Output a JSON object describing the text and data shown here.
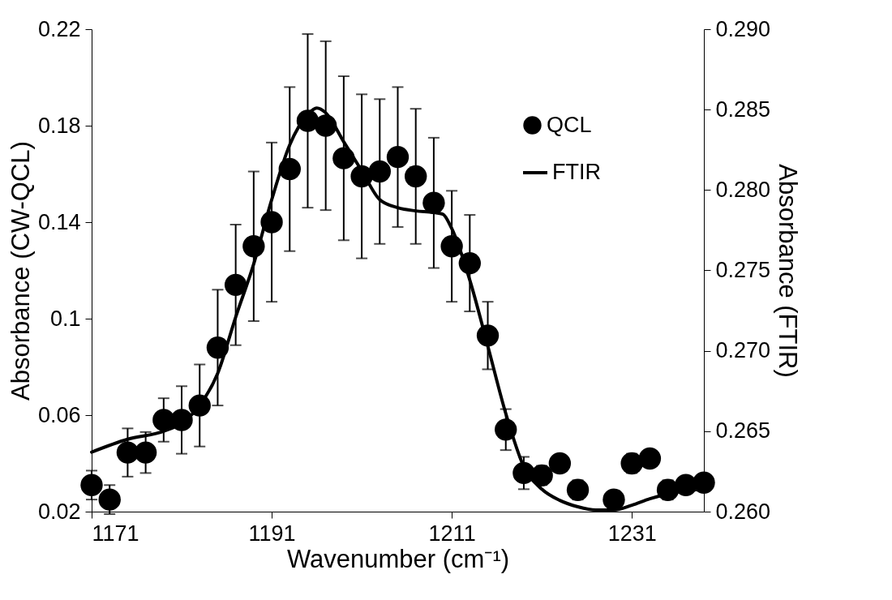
{
  "chart_data": {
    "type": "scatter",
    "xlabel": "Wavenumber (cm⁻¹)",
    "ylabel": "Absorbance (CW-QCL)",
    "y2label": "Absorbance (FTIR)",
    "xlim": [
      1171,
      1239
    ],
    "xticks": [
      1171,
      1191,
      1211,
      1231
    ],
    "ylim": [
      0.02,
      0.22
    ],
    "yticks": [
      0.02,
      0.06,
      {
        "value": 0.1,
        "label": "0.1"
      },
      0.14,
      0.18,
      0.22
    ],
    "y2lim": [
      0.26,
      0.29
    ],
    "y2ticks": [
      {
        "value": 0.26,
        "label": "0.260"
      },
      {
        "value": 0.265,
        "label": "0.265"
      },
      {
        "value": 0.27,
        "label": "0.270"
      },
      {
        "value": 0.275,
        "label": "0.275"
      },
      {
        "value": 0.28,
        "label": "0.280"
      },
      {
        "value": 0.285,
        "label": "0.285"
      },
      {
        "value": 0.29,
        "label": "0.290"
      }
    ],
    "legend": "top right",
    "grid": false,
    "line_style": "solid",
    "series": [
      {
        "name": "QCL",
        "type": "scatter",
        "marker": "circle",
        "color": "#000000",
        "x": [
          1171,
          1173,
          1175,
          1177,
          1179,
          1181,
          1183,
          1185,
          1187,
          1189,
          1191,
          1193,
          1195,
          1197,
          1199,
          1201,
          1203,
          1205,
          1207,
          1209,
          1211,
          1213,
          1215,
          1217,
          1219,
          1221,
          1223,
          1225,
          1227,
          1229,
          1231,
          1233,
          1235,
          1237,
          1239
        ],
        "values": [
          0.031,
          0.025,
          0.0445,
          0.0445,
          0.058,
          0.058,
          0.064,
          0.088,
          0.114,
          0.13,
          0.14,
          0.162,
          0.182,
          0.18,
          0.1665,
          0.159,
          0.161,
          0.167,
          0.159,
          0.148,
          0.13,
          0.123,
          0.093,
          0.054,
          0.036,
          0.035,
          0.04,
          0.029,
          null,
          0.025,
          0.04,
          0.042,
          0.029,
          0.031,
          0.032
        ],
        "errors": [
          0.006,
          0.006,
          0.01,
          0.0085,
          0.009,
          0.014,
          0.017,
          0.024,
          0.025,
          0.031,
          0.033,
          0.034,
          0.036,
          0.035,
          0.034,
          0.034,
          0.03,
          0.029,
          0.028,
          0.027,
          0.023,
          0.02,
          0.014,
          0.0085,
          0.0067,
          0.004,
          0.003,
          0.004,
          null,
          0.003,
          0.004,
          0.003,
          0.004,
          0.003,
          0.003
        ]
      },
      {
        "name": "FTIR",
        "type": "line",
        "marker": "none",
        "axis": "y2",
        "color": "#000000",
        "x": [
          1171,
          1175,
          1179,
          1181,
          1183,
          1185,
          1187,
          1189,
          1191,
          1193,
          1195,
          1196,
          1197,
          1199,
          1201,
          1203,
          1205,
          1207,
          1209,
          1210,
          1211,
          1213,
          1215,
          1217,
          1219,
          1221,
          1223,
          1225,
          1227,
          1229,
          1231,
          1233,
          1235,
          1237,
          1239
        ],
        "values": [
          0.2637,
          0.2645,
          0.265,
          0.2655,
          0.2666,
          0.2686,
          0.2721,
          0.2754,
          0.2794,
          0.2828,
          0.2847,
          0.2851,
          0.2848,
          0.283,
          0.2812,
          0.2794,
          0.2789,
          0.2787,
          0.2786,
          0.2785,
          0.2776,
          0.2744,
          0.2703,
          0.2661,
          0.2628,
          0.2614,
          0.2607,
          0.2603,
          0.2601,
          0.2601,
          0.2604,
          0.2608,
          0.2611,
          0.2613,
          0.2614
        ]
      }
    ]
  }
}
